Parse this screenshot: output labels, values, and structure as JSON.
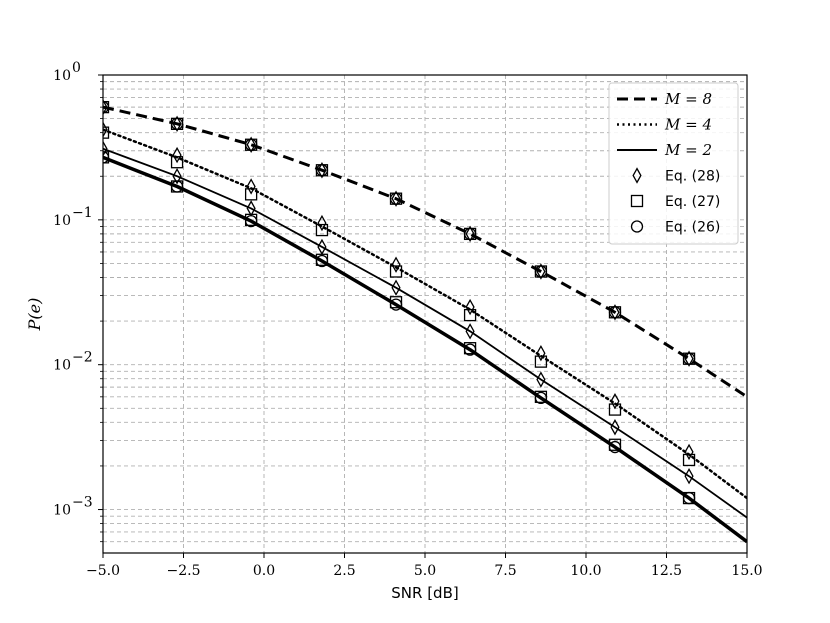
{
  "chart_data": {
    "type": "line",
    "title": "",
    "xlabel": "SNR [dB]",
    "ylabel": "P(e)",
    "xlim": [
      -5.0,
      15.0
    ],
    "ylim_log10": [
      -3.3,
      0
    ],
    "yscale": "log",
    "grid": "on (major and minor, dashed grey)",
    "legend_position": "top-right",
    "x_ticks": [
      "−5.0",
      "−2.5",
      "0.0",
      "2.5",
      "5.0",
      "7.5",
      "10.0",
      "12.5",
      "15.0"
    ],
    "x_tick_values": [
      -5.0,
      -2.5,
      0.0,
      2.5,
      5.0,
      7.5,
      10.0,
      12.5,
      15.0
    ],
    "y_ticks": [
      {
        "value": 1,
        "base": "10",
        "exp": "0"
      },
      {
        "value": 0.1,
        "base": "10",
        "exp": "−1"
      },
      {
        "value": 0.01,
        "base": "10",
        "exp": "−2"
      },
      {
        "value": 0.001,
        "base": "10",
        "exp": "−3"
      }
    ],
    "line_legend": [
      {
        "label": "M = 8",
        "style": "dashed"
      },
      {
        "label": "M = 4",
        "style": "dotted"
      },
      {
        "label": "M = 2",
        "style": "solid"
      }
    ],
    "marker_legend": [
      {
        "label": "Eq. (28)",
        "marker": "diamond"
      },
      {
        "label": "Eq. (27)",
        "marker": "square"
      },
      {
        "label": "Eq. (26)",
        "marker": "circle"
      }
    ],
    "marker_x": [
      -5.0,
      -2.7,
      -0.4,
      1.8,
      4.1,
      6.4,
      8.6,
      10.9,
      13.2
    ],
    "series": [
      {
        "style": "dashed",
        "width": 3,
        "x": [
          -5.0,
          -2.7,
          -0.4,
          1.8,
          4.1,
          6.4,
          8.6,
          10.9,
          13.2,
          15.0
        ],
        "y": [
          0.6,
          0.46,
          0.33,
          0.22,
          0.14,
          0.08,
          0.044,
          0.023,
          0.011,
          0.006
        ],
        "markers": [
          {
            "marker": "diamond",
            "y": [
              0.6,
              0.46,
              0.33,
              0.22,
              0.14,
              0.08,
              0.044,
              0.023,
              0.011
            ]
          },
          {
            "marker": "square",
            "y": [
              0.6,
              0.46,
              0.33,
              0.22,
              0.14,
              0.08,
              0.044,
              0.023,
              0.011
            ]
          },
          {
            "marker": "circle",
            "y": [
              0.6,
              0.46,
              0.33,
              0.22,
              0.14,
              0.08,
              0.044,
              0.023,
              0.011
            ]
          }
        ]
      },
      {
        "style": "dotted",
        "width": 2.5,
        "x": [
          -5.0,
          -2.7,
          -0.4,
          1.8,
          4.1,
          6.4,
          8.6,
          10.9,
          13.2,
          15.0
        ],
        "y": [
          0.42,
          0.27,
          0.165,
          0.09,
          0.047,
          0.024,
          0.0115,
          0.0054,
          0.0024,
          0.0012
        ],
        "markers": [
          {
            "marker": "diamond",
            "y": [
              0.42,
              0.28,
              0.17,
              0.095,
              0.049,
              0.025,
              0.012,
              0.0056,
              0.0025
            ]
          },
          {
            "marker": "square",
            "y": [
              0.4,
              0.25,
              0.15,
              0.085,
              0.044,
              0.022,
              0.0105,
              0.0049,
              0.0022
            ]
          }
        ]
      },
      {
        "style": "solid",
        "width": 1.8,
        "x": [
          -5.0,
          -2.7,
          -0.4,
          1.8,
          4.1,
          6.4,
          8.6,
          10.9,
          13.2,
          15.0
        ],
        "y": [
          0.31,
          0.2,
          0.12,
          0.065,
          0.034,
          0.017,
          0.0079,
          0.0037,
          0.0017,
          0.00088
        ],
        "markers": [
          {
            "marker": "diamond",
            "y": [
              0.31,
              0.2,
              0.12,
              0.065,
              0.034,
              0.017,
              0.0079,
              0.0037,
              0.0017
            ]
          }
        ]
      },
      {
        "style": "solid",
        "width": 3.5,
        "x": [
          -5.0,
          -2.7,
          -0.4,
          1.8,
          4.1,
          6.4,
          8.6,
          10.9,
          13.2,
          15.0
        ],
        "y": [
          0.27,
          0.17,
          0.098,
          0.052,
          0.026,
          0.0127,
          0.0059,
          0.0027,
          0.0012,
          0.0006
        ],
        "markers": [
          {
            "marker": "square",
            "y": [
              0.27,
              0.17,
              0.1,
              0.053,
              0.027,
              0.013,
              0.006,
              0.0028,
              0.0012
            ]
          },
          {
            "marker": "circle",
            "y": [
              0.27,
              0.17,
              0.098,
              0.052,
              0.026,
              0.0127,
              0.0059,
              0.0027,
              0.0012
            ]
          }
        ]
      }
    ]
  }
}
